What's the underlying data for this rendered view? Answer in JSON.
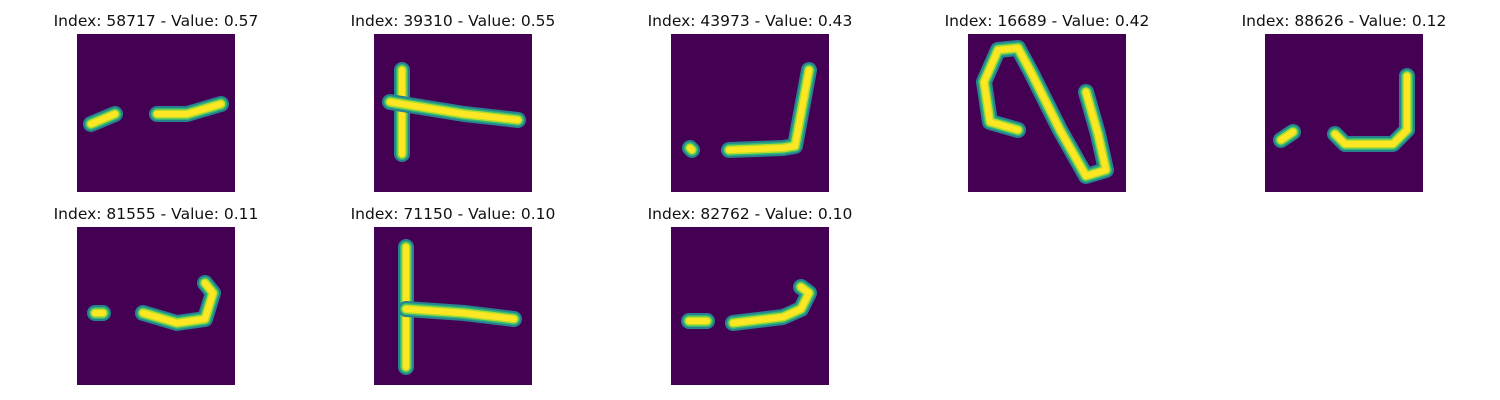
{
  "colors": {
    "background": "#440154",
    "stroke_core": "#fde725",
    "stroke_mid": "#b5de2b",
    "stroke_edge": "#35b779",
    "stroke_halo": "#26828e"
  },
  "panels": [
    {
      "title": "Index: 58717 - Value: 0.57",
      "index": 58717,
      "value": 0.57
    },
    {
      "title": "Index: 39310 - Value: 0.55",
      "index": 39310,
      "value": 0.55
    },
    {
      "title": "Index: 43973 - Value: 0.43",
      "index": 43973,
      "value": 0.43
    },
    {
      "title": "Index: 16689 - Value: 0.42",
      "index": 16689,
      "value": 0.42
    },
    {
      "title": "Index: 88626 - Value: 0.12",
      "index": 88626,
      "value": 0.12
    },
    {
      "title": "Index: 81555 - Value: 0.11",
      "index": 81555,
      "value": 0.11
    },
    {
      "title": "Index: 71150 - Value: 0.10",
      "index": 71150,
      "value": 0.1
    },
    {
      "title": "Index: 82762 - Value: 0.10",
      "index": 82762,
      "value": 0.1
    }
  ]
}
